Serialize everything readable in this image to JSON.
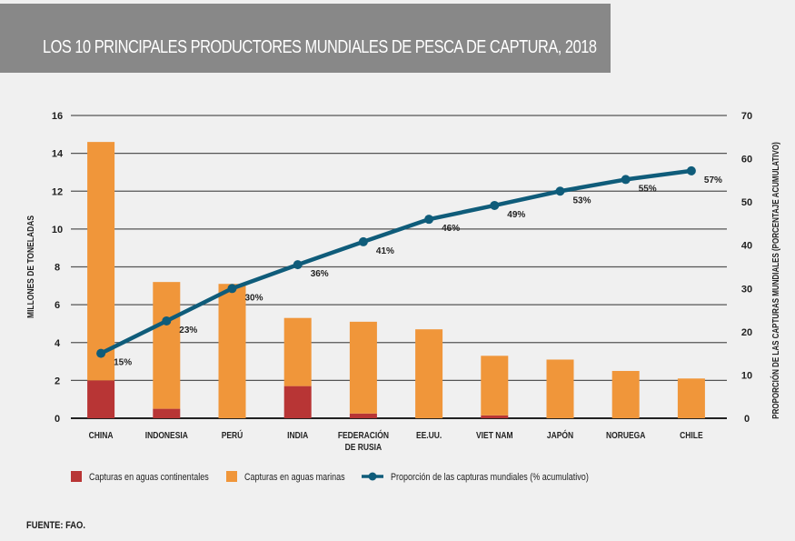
{
  "header": {
    "title": "LOS 10 PRINCIPALES PRODUCTORES MUNDIALES DE PESCA DE CAPTURA, 2018"
  },
  "source": "FUENTE: FAO.",
  "colors": {
    "continental": "#b83535",
    "marine": "#f0963a",
    "line": "#0f5c7a",
    "grid": "#555555",
    "background": "#f0f0f0",
    "header": "#888888"
  },
  "chart_data": {
    "type": "bar",
    "title": "LOS 10 PRINCIPALES PRODUCTORES MUNDIALES DE PESCA DE CAPTURA, 2018",
    "ylabel": "MILLONES DE TONELADAS",
    "y2label": "PROPORCIÓN DE LAS CAPTURAS MUNDIALES (PORCENTAJE ACUMULATIVO)",
    "ylim": [
      0,
      16
    ],
    "y2lim": [
      0,
      70
    ],
    "yticks": [
      "0",
      "2",
      "4",
      "6",
      "8",
      "10",
      "12",
      "14",
      "16"
    ],
    "y2ticks": [
      "0",
      "10",
      "20",
      "30",
      "40",
      "50",
      "60",
      "70"
    ],
    "grid": true,
    "legend_position": "bottom",
    "categories": [
      [
        "CHINA"
      ],
      [
        "INDONESIA"
      ],
      [
        "PERÚ"
      ],
      [
        "INDIA"
      ],
      [
        "FEDERACIÓN",
        "DE RUSIA"
      ],
      [
        "EE.UU."
      ],
      [
        "VIET NAM"
      ],
      [
        "JAPÓN"
      ],
      [
        "NORUEGA"
      ],
      [
        "CHILE"
      ]
    ],
    "series": [
      {
        "name": "Capturas en aguas continentales",
        "type": "bar",
        "stack": "total",
        "values": [
          2.0,
          0.5,
          0.0,
          1.7,
          0.25,
          0.0,
          0.15,
          0.0,
          0.0,
          0.0
        ]
      },
      {
        "name": "Capturas en aguas marinas",
        "type": "bar",
        "stack": "total",
        "values": [
          12.6,
          6.7,
          7.1,
          3.6,
          4.85,
          4.7,
          3.15,
          3.1,
          2.5,
          2.1
        ]
      },
      {
        "name": "Proporción de las capturas mundiales (% acumulativo)",
        "type": "line",
        "axis": "right",
        "values": [
          15,
          22.5,
          30,
          35.5,
          40.8,
          46,
          49.2,
          52.5,
          55.2,
          57.2
        ],
        "labels": [
          "15%",
          "23%",
          "30%",
          "36%",
          "41%",
          "46%",
          "49%",
          "53%",
          "55%",
          "57%"
        ]
      }
    ]
  }
}
